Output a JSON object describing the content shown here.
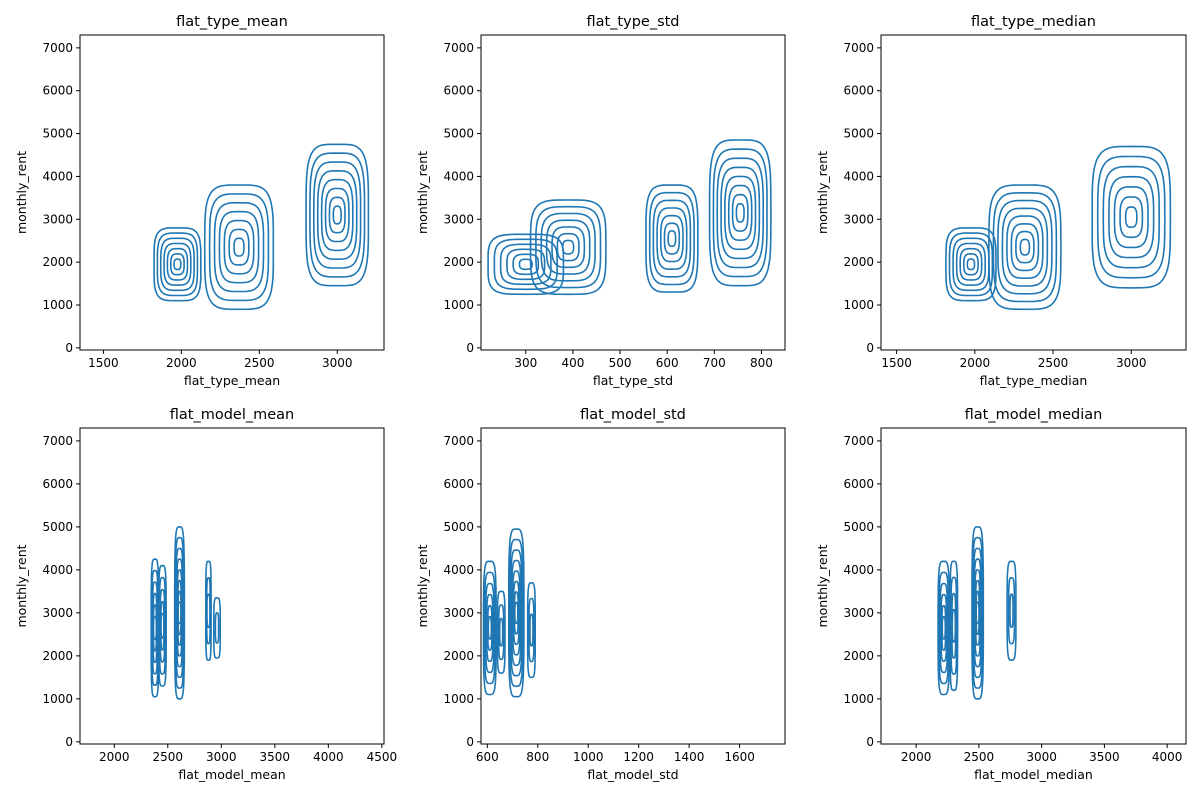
{
  "figure": {
    "line_color": "#1f77b4",
    "background": "#ffffff"
  },
  "chart_data": [
    {
      "type": "contour",
      "title": "flat_type_mean",
      "xlabel": "flat_type_mean",
      "ylabel": "monthly_rent",
      "xlim": [
        1350,
        3300
      ],
      "ylim": [
        -50,
        7300
      ],
      "xticks": [
        1500,
        2000,
        2500,
        3000
      ],
      "yticks": [
        0,
        1000,
        2000,
        3000,
        4000,
        5000,
        6000,
        7000
      ],
      "grid": false,
      "clusters": [
        {
          "x_center": 1975,
          "y_center": 1950,
          "x_halfwidth": 150,
          "y_halfwidth": 850,
          "levels": 7
        },
        {
          "x_center": 2370,
          "y_center": 2350,
          "x_halfwidth": 220,
          "y_halfwidth": 1450,
          "levels": 7
        },
        {
          "x_center": 3000,
          "y_center": 3100,
          "x_halfwidth": 200,
          "y_halfwidth": 1650,
          "levels": 8
        }
      ]
    },
    {
      "type": "contour",
      "title": "flat_type_std",
      "xlabel": "flat_type_std",
      "ylabel": "monthly_rent",
      "xlim": [
        205,
        850
      ],
      "ylim": [
        -50,
        7300
      ],
      "xticks": [
        300,
        400,
        500,
        600,
        700,
        800
      ],
      "yticks": [
        0,
        1000,
        2000,
        3000,
        4000,
        5000,
        6000,
        7000
      ],
      "grid": false,
      "clusters": [
        {
          "x_center": 300,
          "y_center": 1950,
          "x_halfwidth": 80,
          "y_halfwidth": 700,
          "levels": 6
        },
        {
          "x_center": 390,
          "y_center": 2350,
          "x_halfwidth": 80,
          "y_halfwidth": 1100,
          "levels": 7
        },
        {
          "x_center": 610,
          "y_center": 2550,
          "x_halfwidth": 55,
          "y_halfwidth": 1250,
          "levels": 7
        },
        {
          "x_center": 755,
          "y_center": 3150,
          "x_halfwidth": 65,
          "y_halfwidth": 1700,
          "levels": 8
        }
      ]
    },
    {
      "type": "contour",
      "title": "flat_type_median",
      "xlabel": "flat_type_median",
      "ylabel": "monthly_rent",
      "xlim": [
        1400,
        3350
      ],
      "ylim": [
        -50,
        7300
      ],
      "xticks": [
        1500,
        2000,
        2500,
        3000
      ],
      "yticks": [
        0,
        1000,
        2000,
        3000,
        4000,
        5000,
        6000,
        7000
      ],
      "grid": false,
      "clusters": [
        {
          "x_center": 1975,
          "y_center": 1950,
          "x_halfwidth": 160,
          "y_halfwidth": 850,
          "levels": 7
        },
        {
          "x_center": 2320,
          "y_center": 2350,
          "x_halfwidth": 230,
          "y_halfwidth": 1450,
          "levels": 8
        },
        {
          "x_center": 3000,
          "y_center": 3050,
          "x_halfwidth": 250,
          "y_halfwidth": 1650,
          "levels": 7
        }
      ]
    },
    {
      "type": "contour",
      "title": "flat_model_mean",
      "xlabel": "flat_model_mean",
      "ylabel": "monthly_rent",
      "xlim": [
        1680,
        4520
      ],
      "ylim": [
        -50,
        7300
      ],
      "xticks": [
        2000,
        2500,
        3000,
        3500,
        4000,
        4500
      ],
      "yticks": [
        0,
        1000,
        2000,
        3000,
        4000,
        5000,
        6000,
        7000
      ],
      "grid": false,
      "clusters": [
        {
          "x_center": 2380,
          "y_center": 2650,
          "x_halfwidth": 35,
          "y_halfwidth": 1600,
          "levels": 6
        },
        {
          "x_center": 2450,
          "y_center": 2700,
          "x_halfwidth": 35,
          "y_halfwidth": 1400,
          "levels": 5
        },
        {
          "x_center": 2610,
          "y_center": 3000,
          "x_halfwidth": 45,
          "y_halfwidth": 2000,
          "levels": 8
        },
        {
          "x_center": 2880,
          "y_center": 3050,
          "x_halfwidth": 25,
          "y_halfwidth": 1150,
          "levels": 3
        },
        {
          "x_center": 2960,
          "y_center": 2650,
          "x_halfwidth": 30,
          "y_halfwidth": 700,
          "levels": 2
        }
      ]
    },
    {
      "type": "contour",
      "title": "flat_model_std",
      "xlabel": "flat_model_std",
      "ylabel": "monthly_rent",
      "xlim": [
        575,
        1780
      ],
      "ylim": [
        -50,
        7300
      ],
      "xticks": [
        600,
        800,
        1000,
        1200,
        1400,
        1600
      ],
      "yticks": [
        0,
        1000,
        2000,
        3000,
        4000,
        5000,
        6000,
        7000
      ],
      "grid": false,
      "clusters": [
        {
          "x_center": 610,
          "y_center": 2650,
          "x_halfwidth": 25,
          "y_halfwidth": 1550,
          "levels": 6
        },
        {
          "x_center": 655,
          "y_center": 2550,
          "x_halfwidth": 15,
          "y_halfwidth": 950,
          "levels": 3
        },
        {
          "x_center": 715,
          "y_center": 3000,
          "x_halfwidth": 30,
          "y_halfwidth": 1950,
          "levels": 8
        },
        {
          "x_center": 775,
          "y_center": 2600,
          "x_halfwidth": 15,
          "y_halfwidth": 1100,
          "levels": 3
        }
      ]
    },
    {
      "type": "contour",
      "title": "flat_model_median",
      "xlabel": "flat_model_median",
      "ylabel": "monthly_rent",
      "xlim": [
        1720,
        4150
      ],
      "ylim": [
        -50,
        7300
      ],
      "xticks": [
        2000,
        2500,
        3000,
        3500,
        4000
      ],
      "yticks": [
        0,
        1000,
        2000,
        3000,
        4000,
        5000,
        6000,
        7000
      ],
      "grid": false,
      "clusters": [
        {
          "x_center": 2220,
          "y_center": 2650,
          "x_halfwidth": 45,
          "y_halfwidth": 1550,
          "levels": 6
        },
        {
          "x_center": 2300,
          "y_center": 2700,
          "x_halfwidth": 30,
          "y_halfwidth": 1500,
          "levels": 4
        },
        {
          "x_center": 2490,
          "y_center": 3000,
          "x_halfwidth": 45,
          "y_halfwidth": 2000,
          "levels": 8
        },
        {
          "x_center": 2760,
          "y_center": 3050,
          "x_halfwidth": 35,
          "y_halfwidth": 1150,
          "levels": 3
        }
      ]
    }
  ]
}
